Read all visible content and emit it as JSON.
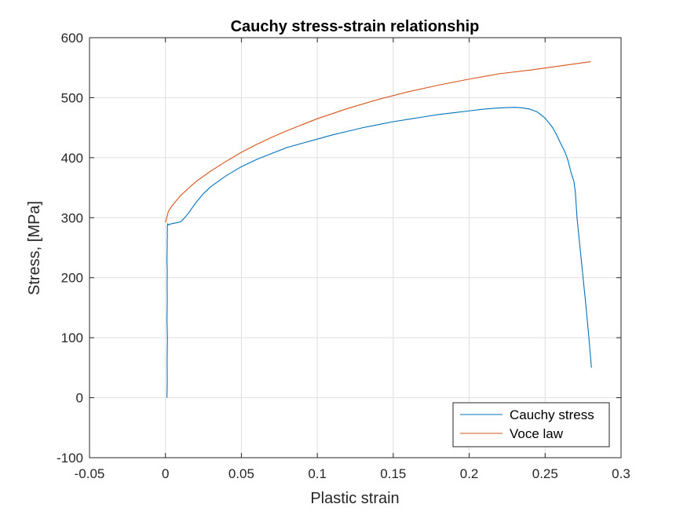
{
  "chart_data": {
    "type": "line",
    "title": "Cauchy stress-strain relationship",
    "xlabel": "Plastic strain",
    "ylabel": "Stress, [MPa]",
    "xlim": [
      -0.05,
      0.3
    ],
    "ylim": [
      -100,
      600
    ],
    "xticks": [
      -0.05,
      0,
      0.05,
      0.1,
      0.15,
      0.2,
      0.25,
      0.3
    ],
    "xtick_labels": [
      "-0.05",
      "0",
      "0.05",
      "0.1",
      "0.15",
      "0.2",
      "0.25",
      "0.3"
    ],
    "yticks": [
      -100,
      0,
      100,
      200,
      300,
      400,
      500,
      600
    ],
    "ytick_labels": [
      "-100",
      "0",
      "100",
      "200",
      "300",
      "400",
      "500",
      "600"
    ],
    "grid": true,
    "legend_position": "bottom-right",
    "series": [
      {
        "name": "Cauchy stress",
        "color": "#0072BD",
        "x": [
          0.001,
          0.0012,
          0.0011,
          0.0013,
          0.001,
          0.0012,
          0.0011,
          0.0012,
          0.001,
          0.0011,
          0.0012,
          0.0011,
          0.0013,
          0.0012,
          0.0012,
          0.0013,
          0.0012,
          0.0014,
          0.0015,
          0.002,
          0.004,
          0.006,
          0.008,
          0.01,
          0.012,
          0.015,
          0.02,
          0.025,
          0.03,
          0.04,
          0.05,
          0.06,
          0.07,
          0.08,
          0.09,
          0.1,
          0.11,
          0.12,
          0.13,
          0.14,
          0.15,
          0.16,
          0.17,
          0.18,
          0.19,
          0.2,
          0.21,
          0.22,
          0.23,
          0.235,
          0.24,
          0.245,
          0.25,
          0.255,
          0.258,
          0.26,
          0.263,
          0.265,
          0.267,
          0.269,
          0.27,
          0.271,
          0.273,
          0.275,
          0.277,
          0.279,
          0.2805
        ],
        "y": [
          0,
          30,
          60,
          100,
          130,
          160,
          190,
          210,
          230,
          245,
          255,
          262,
          268,
          272,
          276,
          280,
          284,
          287,
          290,
          288,
          290,
          291,
          292,
          293,
          298,
          307,
          325,
          340,
          352,
          370,
          385,
          397,
          407,
          417,
          424,
          431,
          438,
          444,
          450,
          455,
          460,
          464,
          468,
          472,
          475,
          478,
          481,
          483,
          484,
          483,
          481,
          476,
          466,
          450,
          436,
          425,
          410,
          396,
          376,
          360,
          340,
          300,
          250,
          200,
          150,
          95,
          50
        ]
      },
      {
        "name": "Voce law",
        "color": "#D95319",
        "x": [
          0.0,
          0.002,
          0.005,
          0.01,
          0.02,
          0.03,
          0.04,
          0.05,
          0.06,
          0.07,
          0.08,
          0.09,
          0.1,
          0.12,
          0.14,
          0.16,
          0.18,
          0.2,
          0.22,
          0.24,
          0.26,
          0.28
        ],
        "y": [
          292,
          311,
          322,
          337,
          360,
          378,
          394,
          409,
          422,
          434,
          445,
          455,
          465,
          482,
          497,
          510,
          521,
          531,
          540,
          546,
          553,
          560
        ]
      }
    ]
  }
}
